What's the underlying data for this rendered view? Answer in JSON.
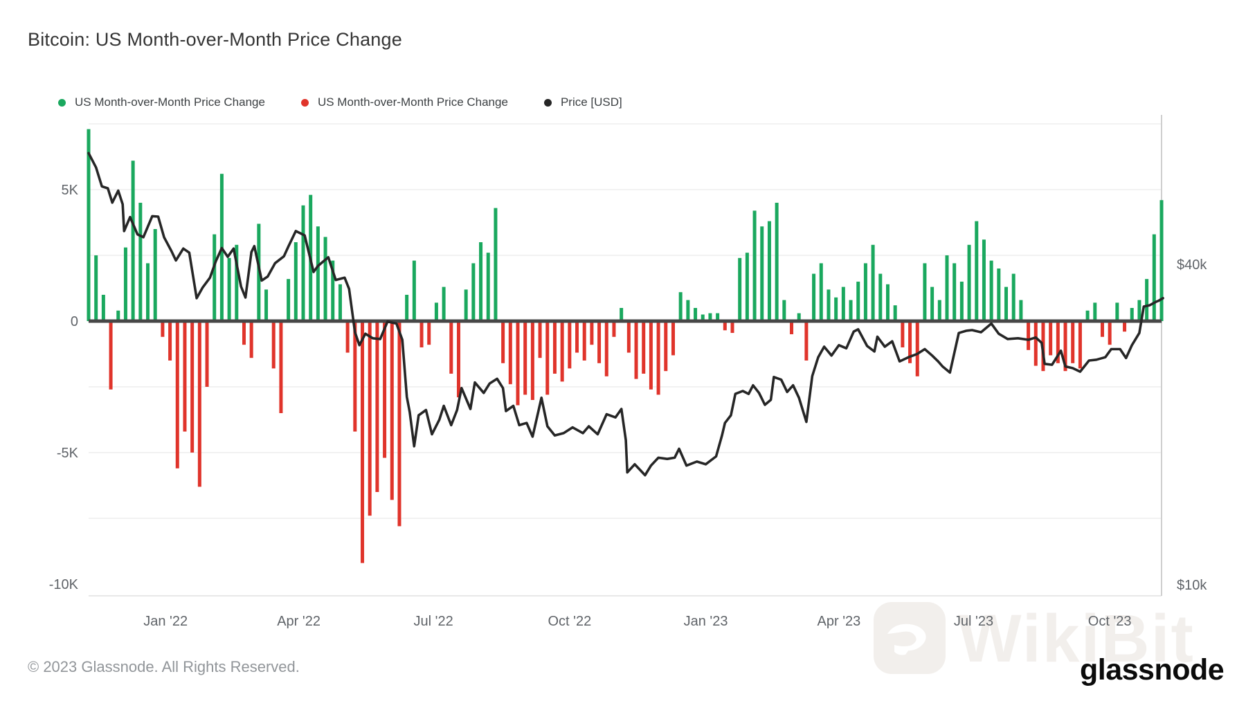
{
  "header": {
    "title": "Bitcoin: US Month-over-Month Price Change"
  },
  "legend": [
    {
      "label": "US Month-over-Month Price Change",
      "color": "#1aa85e",
      "icon": "green-dot"
    },
    {
      "label": "US Month-over-Month Price Change",
      "color": "#e0342b",
      "icon": "red-dot"
    },
    {
      "label": "Price [USD]",
      "color": "#262626",
      "icon": "black-dot"
    }
  ],
  "footer": {
    "copyright": "© 2023 Glassnode. All Rights Reserved.",
    "brand": "glassnode",
    "watermark": "WikiBit"
  },
  "chart_data": {
    "type": "combo",
    "title": "Bitcoin: US Month-over-Month Price Change",
    "legend_position": "top-left",
    "grid": "horizontal-faint",
    "bar_series": {
      "name": "US Month-over-Month Price Change",
      "units": "USD (thousands)",
      "positive_color": "#1aa85e",
      "negative_color": "#e0342b",
      "start_date": "2021-11-10",
      "step_days": 5,
      "values_k": [
        7.3,
        2.5,
        1.0,
        -2.6,
        0.4,
        2.8,
        6.1,
        4.5,
        2.2,
        3.5,
        -0.6,
        -1.5,
        -5.6,
        -4.2,
        -5.0,
        -6.3,
        -2.5,
        3.3,
        5.6,
        2.4,
        2.9,
        -0.9,
        -1.4,
        3.7,
        1.2,
        -1.8,
        -3.5,
        1.6,
        3.0,
        4.4,
        4.8,
        3.6,
        3.2,
        2.3,
        1.4,
        -1.2,
        -4.2,
        -9.2,
        -7.4,
        -6.5,
        -5.2,
        -6.8,
        -7.8,
        1.0,
        2.3,
        -1.0,
        -0.9,
        0.7,
        1.3,
        -2.0,
        -2.9,
        1.2,
        2.2,
        3.0,
        2.6,
        4.3,
        -1.6,
        -2.4,
        -3.2,
        -2.8,
        -3.0,
        -1.4,
        -2.8,
        -2.0,
        -2.3,
        -1.8,
        -1.2,
        -1.5,
        -0.9,
        -1.6,
        -2.1,
        -0.6,
        0.5,
        -1.2,
        -2.2,
        -2.0,
        -2.6,
        -2.8,
        -1.9,
        -1.3,
        1.1,
        0.8,
        0.5,
        0.25,
        0.3,
        0.3,
        -0.35,
        -0.45,
        2.4,
        2.6,
        4.2,
        3.6,
        3.8,
        4.5,
        0.8,
        -0.5,
        0.3,
        -1.5,
        1.8,
        2.2,
        1.2,
        0.9,
        1.3,
        0.8,
        1.5,
        2.2,
        2.9,
        1.8,
        1.4,
        0.6,
        -1.0,
        -1.6,
        -2.1,
        2.2,
        1.3,
        0.8,
        2.5,
        2.2,
        1.5,
        2.9,
        3.8,
        3.1,
        2.3,
        2.0,
        1.3,
        1.8,
        0.8,
        -1.1,
        -1.7,
        -1.9,
        -1.3,
        -1.6,
        -1.9,
        -1.6,
        -1.8,
        0.4,
        0.7,
        -0.6,
        -0.9,
        0.7,
        -0.4,
        0.5,
        0.8,
        1.6,
        3.3,
        4.6
      ]
    },
    "line_series": {
      "name": "Price [USD]",
      "scale": "log",
      "color": "#262626",
      "points_date_priceK": [
        [
          "2021-11-10",
          67.5
        ],
        [
          "2021-11-15",
          63.3
        ],
        [
          "2021-11-19",
          58.1
        ],
        [
          "2021-11-23",
          57.6
        ],
        [
          "2021-11-26",
          54.0
        ],
        [
          "2021-11-30",
          57.0
        ],
        [
          "2021-12-03",
          53.6
        ],
        [
          "2021-12-04",
          47.5
        ],
        [
          "2021-12-08",
          50.6
        ],
        [
          "2021-12-13",
          46.8
        ],
        [
          "2021-12-17",
          46.2
        ],
        [
          "2021-12-23",
          50.8
        ],
        [
          "2021-12-27",
          50.7
        ],
        [
          "2021-12-31",
          46.2
        ],
        [
          "2022-01-05",
          43.4
        ],
        [
          "2022-01-08",
          41.6
        ],
        [
          "2022-01-13",
          43.9
        ],
        [
          "2022-01-17",
          43.1
        ],
        [
          "2022-01-22",
          35.1
        ],
        [
          "2022-01-26",
          36.8
        ],
        [
          "2022-01-31",
          38.5
        ],
        [
          "2022-02-04",
          41.5
        ],
        [
          "2022-02-08",
          44.0
        ],
        [
          "2022-02-12",
          42.3
        ],
        [
          "2022-02-16",
          43.9
        ],
        [
          "2022-02-21",
          37.0
        ],
        [
          "2022-02-24",
          35.2
        ],
        [
          "2022-02-28",
          43.2
        ],
        [
          "2022-03-02",
          44.4
        ],
        [
          "2022-03-07",
          38.0
        ],
        [
          "2022-03-11",
          38.7
        ],
        [
          "2022-03-16",
          41.1
        ],
        [
          "2022-03-22",
          42.4
        ],
        [
          "2022-03-25",
          44.3
        ],
        [
          "2022-03-30",
          47.5
        ],
        [
          "2022-04-05",
          46.6
        ],
        [
          "2022-04-11",
          39.5
        ],
        [
          "2022-04-14",
          40.6
        ],
        [
          "2022-04-21",
          42.2
        ],
        [
          "2022-04-26",
          38.1
        ],
        [
          "2022-05-02",
          38.5
        ],
        [
          "2022-05-05",
          36.6
        ],
        [
          "2022-05-09",
          30.1
        ],
        [
          "2022-05-12",
          28.4
        ],
        [
          "2022-05-16",
          29.9
        ],
        [
          "2022-05-21",
          29.3
        ],
        [
          "2022-05-26",
          29.2
        ],
        [
          "2022-05-31",
          31.6
        ],
        [
          "2022-06-06",
          31.3
        ],
        [
          "2022-06-10",
          29.1
        ],
        [
          "2022-06-13",
          22.5
        ],
        [
          "2022-06-15",
          21.0
        ],
        [
          "2022-06-18",
          18.0
        ],
        [
          "2022-06-21",
          20.7
        ],
        [
          "2022-06-26",
          21.2
        ],
        [
          "2022-06-30",
          19.0
        ],
        [
          "2022-07-05",
          20.3
        ],
        [
          "2022-07-08",
          21.6
        ],
        [
          "2022-07-13",
          19.8
        ],
        [
          "2022-07-17",
          21.2
        ],
        [
          "2022-07-20",
          23.4
        ],
        [
          "2022-07-26",
          21.3
        ],
        [
          "2022-07-29",
          24.0
        ],
        [
          "2022-08-04",
          22.9
        ],
        [
          "2022-08-08",
          23.9
        ],
        [
          "2022-08-13",
          24.4
        ],
        [
          "2022-08-17",
          23.4
        ],
        [
          "2022-08-19",
          21.1
        ],
        [
          "2022-08-24",
          21.6
        ],
        [
          "2022-08-28",
          19.8
        ],
        [
          "2022-09-02",
          20.0
        ],
        [
          "2022-09-06",
          18.8
        ],
        [
          "2022-09-12",
          22.4
        ],
        [
          "2022-09-16",
          19.7
        ],
        [
          "2022-09-21",
          18.9
        ],
        [
          "2022-09-27",
          19.1
        ],
        [
          "2022-10-03",
          19.6
        ],
        [
          "2022-10-10",
          19.1
        ],
        [
          "2022-10-14",
          19.7
        ],
        [
          "2022-10-20",
          19.0
        ],
        [
          "2022-10-26",
          20.8
        ],
        [
          "2022-11-01",
          20.5
        ],
        [
          "2022-11-05",
          21.3
        ],
        [
          "2022-11-08",
          18.5
        ],
        [
          "2022-11-09",
          16.0
        ],
        [
          "2022-11-14",
          16.6
        ],
        [
          "2022-11-21",
          15.8
        ],
        [
          "2022-11-25",
          16.5
        ],
        [
          "2022-11-30",
          17.1
        ],
        [
          "2022-12-06",
          17.0
        ],
        [
          "2022-12-11",
          17.1
        ],
        [
          "2022-12-14",
          17.8
        ],
        [
          "2022-12-19",
          16.5
        ],
        [
          "2022-12-26",
          16.8
        ],
        [
          "2023-01-01",
          16.6
        ],
        [
          "2023-01-08",
          17.2
        ],
        [
          "2023-01-12",
          18.9
        ],
        [
          "2023-01-14",
          20.0
        ],
        [
          "2023-01-18",
          20.7
        ],
        [
          "2023-01-21",
          22.8
        ],
        [
          "2023-01-26",
          23.1
        ],
        [
          "2023-01-30",
          22.8
        ],
        [
          "2023-02-02",
          23.7
        ],
        [
          "2023-02-06",
          22.9
        ],
        [
          "2023-02-10",
          21.7
        ],
        [
          "2023-02-14",
          22.2
        ],
        [
          "2023-02-16",
          24.6
        ],
        [
          "2023-02-21",
          24.3
        ],
        [
          "2023-02-25",
          23.0
        ],
        [
          "2023-03-01",
          23.7
        ],
        [
          "2023-03-05",
          22.4
        ],
        [
          "2023-03-10",
          20.1
        ],
        [
          "2023-03-14",
          24.7
        ],
        [
          "2023-03-18",
          26.9
        ],
        [
          "2023-03-22",
          28.2
        ],
        [
          "2023-03-27",
          27.1
        ],
        [
          "2023-04-01",
          28.4
        ],
        [
          "2023-04-06",
          28.0
        ],
        [
          "2023-04-11",
          30.2
        ],
        [
          "2023-04-14",
          30.5
        ],
        [
          "2023-04-20",
          28.3
        ],
        [
          "2023-04-25",
          27.6
        ],
        [
          "2023-04-27",
          29.5
        ],
        [
          "2023-05-02",
          28.2
        ],
        [
          "2023-05-07",
          28.9
        ],
        [
          "2023-05-12",
          26.4
        ],
        [
          "2023-05-18",
          26.9
        ],
        [
          "2023-05-24",
          27.3
        ],
        [
          "2023-05-29",
          27.9
        ],
        [
          "2023-06-03",
          27.1
        ],
        [
          "2023-06-07",
          26.4
        ],
        [
          "2023-06-10",
          25.8
        ],
        [
          "2023-06-15",
          25.1
        ],
        [
          "2023-06-21",
          30.0
        ],
        [
          "2023-06-26",
          30.3
        ],
        [
          "2023-06-30",
          30.4
        ],
        [
          "2023-07-06",
          30.1
        ],
        [
          "2023-07-13",
          31.3
        ],
        [
          "2023-07-18",
          29.9
        ],
        [
          "2023-07-24",
          29.2
        ],
        [
          "2023-07-31",
          29.3
        ],
        [
          "2023-08-07",
          29.1
        ],
        [
          "2023-08-12",
          29.4
        ],
        [
          "2023-08-16",
          28.7
        ],
        [
          "2023-08-18",
          26.1
        ],
        [
          "2023-08-23",
          26.0
        ],
        [
          "2023-08-29",
          27.7
        ],
        [
          "2023-09-01",
          25.8
        ],
        [
          "2023-09-06",
          25.6
        ],
        [
          "2023-09-11",
          25.2
        ],
        [
          "2023-09-17",
          26.5
        ],
        [
          "2023-09-22",
          26.6
        ],
        [
          "2023-09-28",
          26.9
        ],
        [
          "2023-10-02",
          27.9
        ],
        [
          "2023-10-08",
          27.9
        ],
        [
          "2023-10-12",
          26.8
        ],
        [
          "2023-10-16",
          28.4
        ],
        [
          "2023-10-21",
          30.0
        ],
        [
          "2023-10-24",
          33.8
        ],
        [
          "2023-10-28",
          34.0
        ],
        [
          "2023-11-01",
          34.5
        ],
        [
          "2023-11-03",
          34.7
        ],
        [
          "2023-11-06",
          35.1
        ]
      ]
    },
    "y_left": {
      "ticks": [
        "5K",
        "0",
        "-5K",
        "-10K"
      ],
      "tick_values_k": [
        5,
        0,
        -5,
        -10
      ],
      "gridlines_k": [
        7.5,
        5,
        2.5,
        -2.5,
        -5,
        -7.5
      ],
      "range_k": [
        -10.4,
        7.8
      ]
    },
    "y_right": {
      "ticks": [
        "$40k",
        "$10k"
      ],
      "tick_values_k": [
        40,
        10
      ]
    },
    "x_axis": {
      "ticks": [
        {
          "label": "Jan '22",
          "date": "2022-01-01"
        },
        {
          "label": "Apr '22",
          "date": "2022-04-01"
        },
        {
          "label": "Jul '22",
          "date": "2022-07-01"
        },
        {
          "label": "Oct '22",
          "date": "2022-10-01"
        },
        {
          "label": "Jan '23",
          "date": "2023-01-01"
        },
        {
          "label": "Apr '23",
          "date": "2023-04-01"
        },
        {
          "label": "Jul '23",
          "date": "2023-07-01"
        },
        {
          "label": "Oct '23",
          "date": "2023-10-01"
        }
      ]
    }
  }
}
